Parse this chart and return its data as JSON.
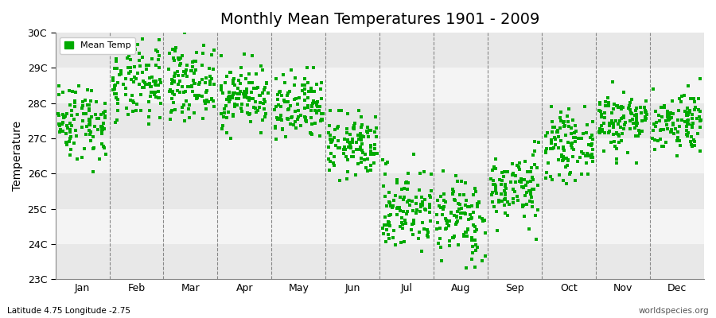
{
  "title": "Monthly Mean Temperatures 1901 - 2009",
  "ylabel": "Temperature",
  "subtitle_left": "Latitude 4.75 Longitude -2.75",
  "subtitle_right": "worldspecies.org",
  "legend_label": "Mean Temp",
  "dot_color": "#00aa00",
  "background_color": "#ffffff",
  "ylim": [
    23,
    30
  ],
  "yticks": [
    23,
    24,
    25,
    26,
    27,
    28,
    29,
    30
  ],
  "ytick_labels": [
    "23C",
    "24C",
    "25C",
    "26C",
    "27C",
    "28C",
    "29C",
    "30C"
  ],
  "months": [
    "Jan",
    "Feb",
    "Mar",
    "Apr",
    "May",
    "Jun",
    "Jul",
    "Aug",
    "Sep",
    "Oct",
    "Nov",
    "Dec"
  ],
  "month_means": [
    27.5,
    28.5,
    28.6,
    28.2,
    27.8,
    26.8,
    25.0,
    24.7,
    25.6,
    26.8,
    27.5,
    27.5
  ],
  "month_stds": [
    0.55,
    0.55,
    0.5,
    0.45,
    0.5,
    0.45,
    0.6,
    0.6,
    0.5,
    0.45,
    0.45,
    0.45
  ],
  "month_mins": [
    25.2,
    27.2,
    27.5,
    27.0,
    25.5,
    25.6,
    23.2,
    23.0,
    24.0,
    25.5,
    26.3,
    26.5
  ],
  "month_maxs": [
    28.5,
    29.9,
    30.0,
    29.4,
    29.0,
    27.8,
    26.8,
    26.5,
    26.9,
    27.9,
    28.6,
    28.7
  ],
  "n_years": 109,
  "seed": 42,
  "marker_size": 6,
  "dpi": 100,
  "fig_width": 9.0,
  "fig_height": 4.0,
  "band_colors": [
    "#e8e8e8",
    "#f4f4f4"
  ]
}
